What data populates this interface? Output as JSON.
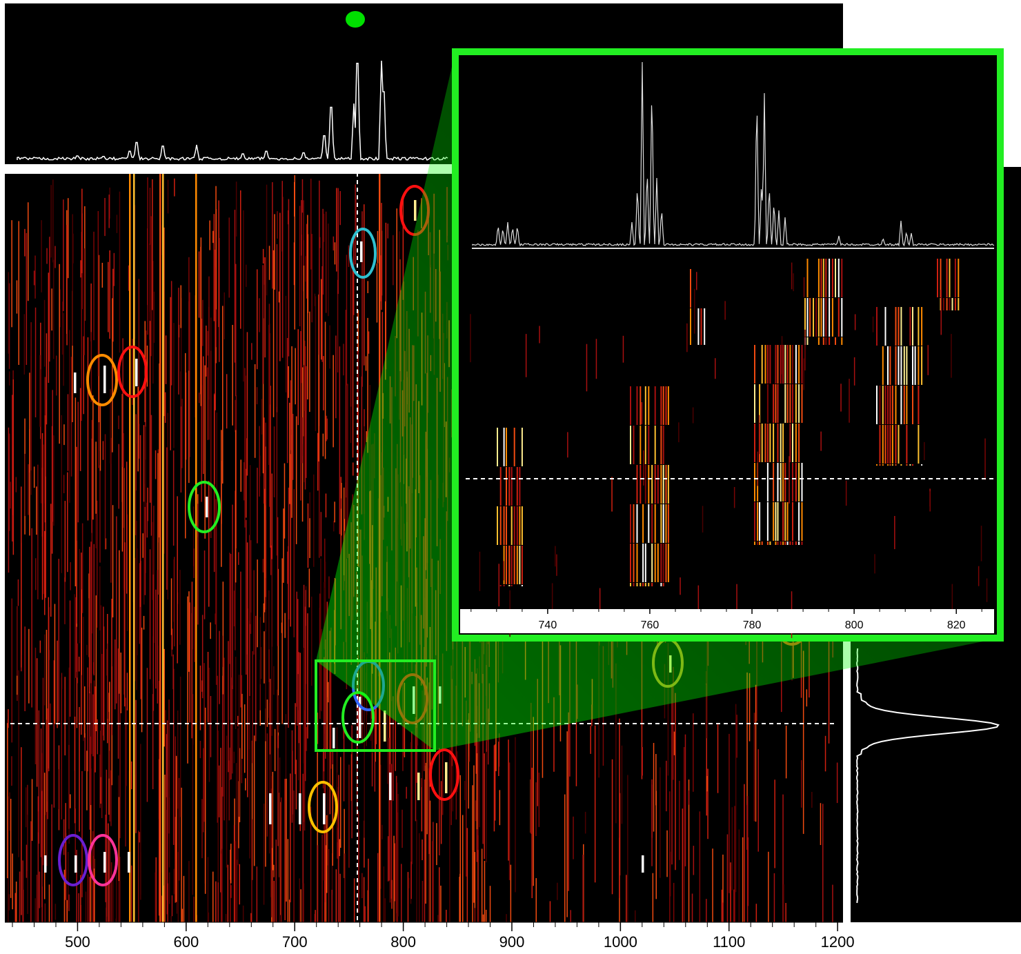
{
  "chart_data": [
    {
      "type": "heatmap",
      "xlim": [
        433,
        1205
      ],
      "xticks": [
        500,
        600,
        700,
        800,
        900,
        1000,
        1100,
        1200
      ]
    },
    {
      "type": "heatmap",
      "xlim": [
        723,
        827.4
      ],
      "xticks": [
        740,
        760,
        780,
        800,
        820
      ]
    }
  ]
}
